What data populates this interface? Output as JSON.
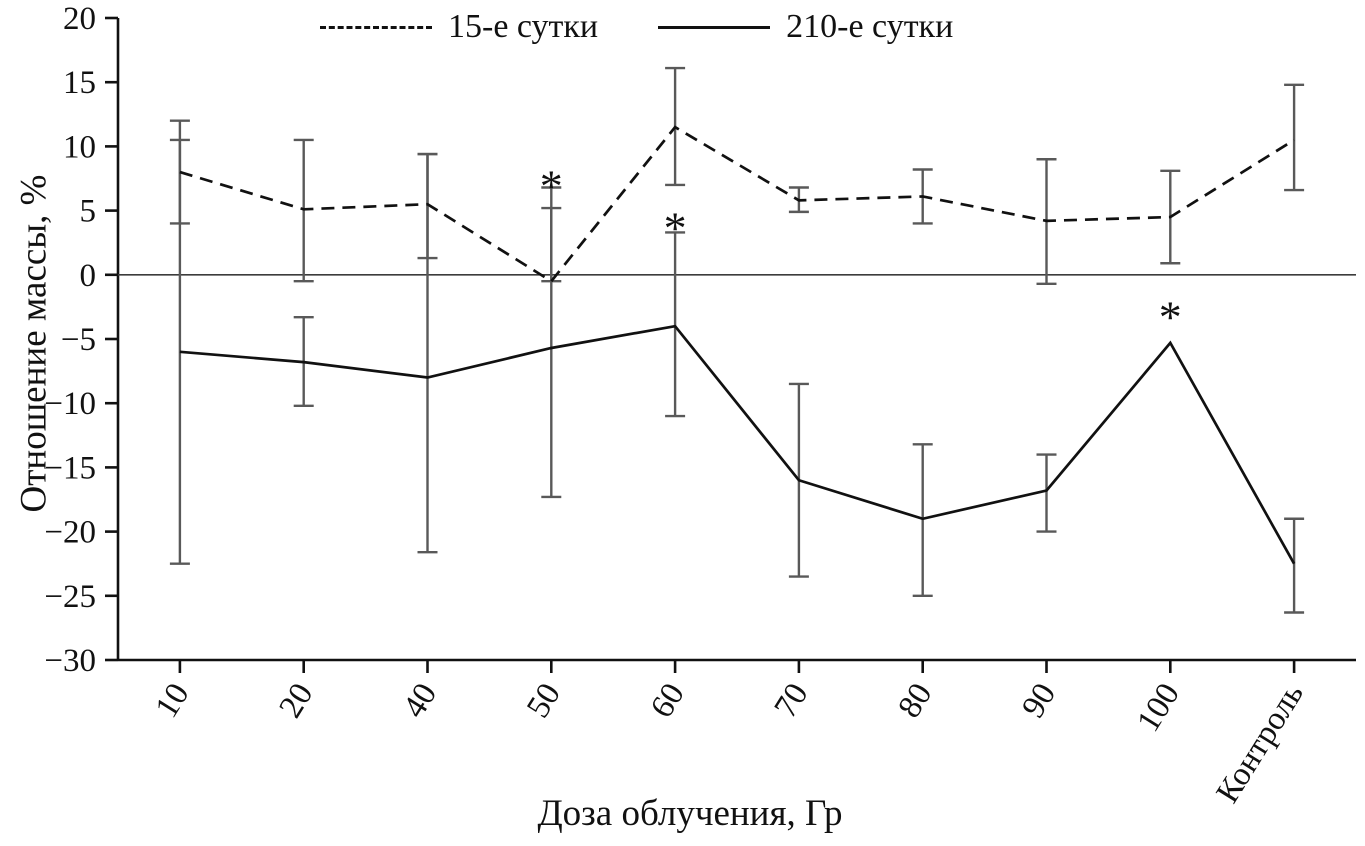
{
  "chart_data": {
    "type": "line",
    "title": "",
    "xlabel": "Доза облучения, Гр",
    "ylabel": "Отношение массы, %",
    "categories": [
      "10",
      "20",
      "40",
      "50",
      "60",
      "70",
      "80",
      "90",
      "100",
      "Контроль"
    ],
    "ylim": [
      -30,
      20
    ],
    "yticks": [
      20,
      15,
      10,
      5,
      0,
      -5,
      -10,
      -15,
      -20,
      -25,
      -30
    ],
    "grid": false,
    "legend_position": "top-center-inside",
    "error_bar_color": "#595959",
    "line_color": "#111111",
    "series": [
      {
        "name": "15-е сутки",
        "line_style": "dashed",
        "values": [
          8.0,
          5.1,
          5.5,
          -0.5,
          11.5,
          5.8,
          6.1,
          4.2,
          4.5,
          10.5
        ],
        "err_low": [
          4.0,
          -0.5,
          1.3,
          -0.5,
          7.0,
          4.9,
          4.0,
          -0.7,
          0.9,
          6.6
        ],
        "err_high": [
          12.0,
          10.5,
          9.4,
          6.8,
          16.1,
          6.8,
          8.2,
          9.0,
          8.1,
          14.8
        ]
      },
      {
        "name": "210-е сутки",
        "line_style": "solid",
        "values": [
          -6.0,
          -6.8,
          -8.0,
          -5.7,
          -4.0,
          -16.0,
          -19.0,
          -16.8,
          -5.3,
          -22.5
        ],
        "err_low": [
          -22.5,
          -10.2,
          -21.6,
          -17.3,
          -11.0,
          -23.5,
          -25.0,
          -20.0,
          null,
          -26.3
        ],
        "err_high": [
          10.5,
          -3.3,
          9.4,
          5.2,
          3.3,
          -8.5,
          -13.2,
          -14.0,
          null,
          -19.0
        ]
      }
    ],
    "annotations": [
      {
        "text": "*",
        "category": "50",
        "y": 7.9
      },
      {
        "text": "*",
        "category": "60",
        "y": 4.6
      },
      {
        "text": "*",
        "category": "100",
        "y": -2.3
      }
    ]
  }
}
